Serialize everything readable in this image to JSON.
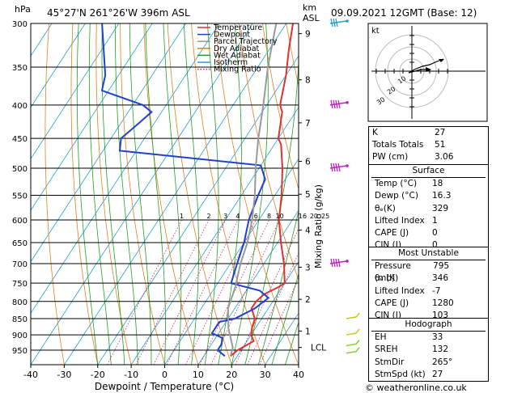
{
  "header": {
    "location": "45°27'N  261°26'W  396m  ASL",
    "datetime": "09.09.2021  12GMT  (Base: 12)",
    "hpa_label": "hPa",
    "km_label": "km",
    "asl_label": "ASL"
  },
  "legend": [
    {
      "label": "Temperature",
      "color": "#e03030",
      "style": "solid"
    },
    {
      "label": "Dewpoint",
      "color": "#2040d0",
      "style": "solid"
    },
    {
      "label": "Parcel Trajectory",
      "color": "#999999",
      "style": "solid"
    },
    {
      "label": "Dry Adiabat",
      "color": "#e08020",
      "style": "solid"
    },
    {
      "label": "Wet Adiabat",
      "color": "#20a020",
      "style": "solid"
    },
    {
      "label": "Isotherm",
      "color": "#20a0d0",
      "style": "solid"
    },
    {
      "label": "Mixing Ratio",
      "color": "#d02080",
      "style": "dotted"
    }
  ],
  "chart_data": {
    "type": "line",
    "xlabel": "Dewpoint / Temperature (°C)",
    "ylabel_right": "Mixing Ratio (g/kg)",
    "xlim": [
      -40,
      40
    ],
    "ylim": [
      300,
      1000
    ],
    "pressure_ticks": [
      300,
      350,
      400,
      450,
      500,
      550,
      600,
      650,
      700,
      750,
      800,
      850,
      900,
      950
    ],
    "temp_ticks": [
      -40,
      -30,
      -20,
      -10,
      0,
      10,
      20,
      30,
      40
    ],
    "km_ticks": [
      {
        "label": "9",
        "p": 311
      },
      {
        "label": "8",
        "p": 366
      },
      {
        "label": "7",
        "p": 426
      },
      {
        "label": "6",
        "p": 488
      },
      {
        "label": "5",
        "p": 548
      },
      {
        "label": "4",
        "p": 622
      },
      {
        "label": "3",
        "p": 709
      },
      {
        "label": "2",
        "p": 794
      },
      {
        "label": "1",
        "p": 888
      },
      {
        "label": "LCL",
        "p": 941
      }
    ],
    "mixing_ratio_labels": [
      "1",
      "2",
      "3",
      "4",
      "6",
      "8",
      "10",
      "16",
      "20",
      "25"
    ],
    "series": [
      {
        "name": "Temperature",
        "color": "#e03030",
        "points": [
          [
            18,
            970
          ],
          [
            19,
            950
          ],
          [
            22,
            920
          ],
          [
            20,
            900
          ],
          [
            19,
            880
          ],
          [
            18,
            850
          ],
          [
            15,
            820
          ],
          [
            15,
            800
          ],
          [
            16,
            780
          ],
          [
            19,
            760
          ],
          [
            20,
            750
          ],
          [
            16,
            700
          ],
          [
            11,
            650
          ],
          [
            6,
            600
          ],
          [
            2,
            550
          ],
          [
            -3,
            500
          ],
          [
            -8,
            460
          ],
          [
            -10,
            450
          ],
          [
            -14,
            410
          ],
          [
            -16,
            400
          ],
          [
            -20,
            360
          ],
          [
            -24,
            330
          ],
          [
            -28,
            300
          ]
        ]
      },
      {
        "name": "Dewpoint",
        "color": "#2040d0",
        "points": [
          [
            16.3,
            970
          ],
          [
            13,
            950
          ],
          [
            13,
            930
          ],
          [
            12,
            910
          ],
          [
            8,
            895
          ],
          [
            8,
            880
          ],
          [
            8,
            860
          ],
          [
            12,
            850
          ],
          [
            16,
            820
          ],
          [
            18,
            790
          ],
          [
            14,
            770
          ],
          [
            4,
            750
          ],
          [
            2,
            700
          ],
          [
            0,
            650
          ],
          [
            -3,
            600
          ],
          [
            -5,
            550
          ],
          [
            -6,
            520
          ],
          [
            -10,
            495
          ],
          [
            -55,
            470
          ],
          [
            -57,
            450
          ],
          [
            -55,
            430
          ],
          [
            -53,
            410
          ],
          [
            -57,
            400
          ],
          [
            -72,
            380
          ],
          [
            -74,
            360
          ],
          [
            -85,
            300
          ]
        ]
      },
      {
        "name": "Parcel Trajectory",
        "color": "#999999",
        "points": [
          [
            18,
            970
          ],
          [
            17,
            941
          ],
          [
            12,
            880
          ],
          [
            8,
            820
          ],
          [
            6,
            760
          ],
          [
            3,
            700
          ],
          [
            1,
            650
          ],
          [
            -2,
            600
          ],
          [
            -6,
            550
          ],
          [
            -11,
            500
          ],
          [
            -16,
            450
          ],
          [
            -21,
            400
          ],
          [
            -27,
            350
          ],
          [
            -33,
            300
          ]
        ]
      }
    ]
  },
  "hodograph": {
    "title": "kt",
    "ring_labels": [
      "10",
      "20",
      "30"
    ]
  },
  "indices": [
    {
      "label": "K",
      "value": "27"
    },
    {
      "label": "Totals Totals",
      "value": "51"
    },
    {
      "label": "PW (cm)",
      "value": "3.06"
    }
  ],
  "surface": {
    "title": "Surface",
    "rows": [
      {
        "label": "Temp (°C)",
        "value": "18"
      },
      {
        "label": "Dewp (°C)",
        "value": "16.3"
      },
      {
        "label": "θₑ(K)",
        "value": "329"
      },
      {
        "label": "Lifted Index",
        "value": "1"
      },
      {
        "label": "CAPE (J)",
        "value": "0"
      },
      {
        "label": "CIN (J)",
        "value": "0"
      }
    ]
  },
  "most_unstable": {
    "title": "Most Unstable",
    "rows": [
      {
        "label": "Pressure (mb)",
        "value": "795"
      },
      {
        "label": "θₑ (K)",
        "value": "346"
      },
      {
        "label": "Lifted Index",
        "value": "-7"
      },
      {
        "label": "CAPE (J)",
        "value": "1280"
      },
      {
        "label": "CIN (J)",
        "value": "103"
      }
    ]
  },
  "hodo_table": {
    "title": "Hodograph",
    "rows": [
      {
        "label": "EH",
        "value": "33"
      },
      {
        "label": "SREH",
        "value": "132"
      },
      {
        "label": "StmDir",
        "value": "265°"
      },
      {
        "label": "StmSpd (kt)",
        "value": "27"
      }
    ]
  },
  "footer": {
    "copyright": "© weatheronline.co.uk"
  }
}
